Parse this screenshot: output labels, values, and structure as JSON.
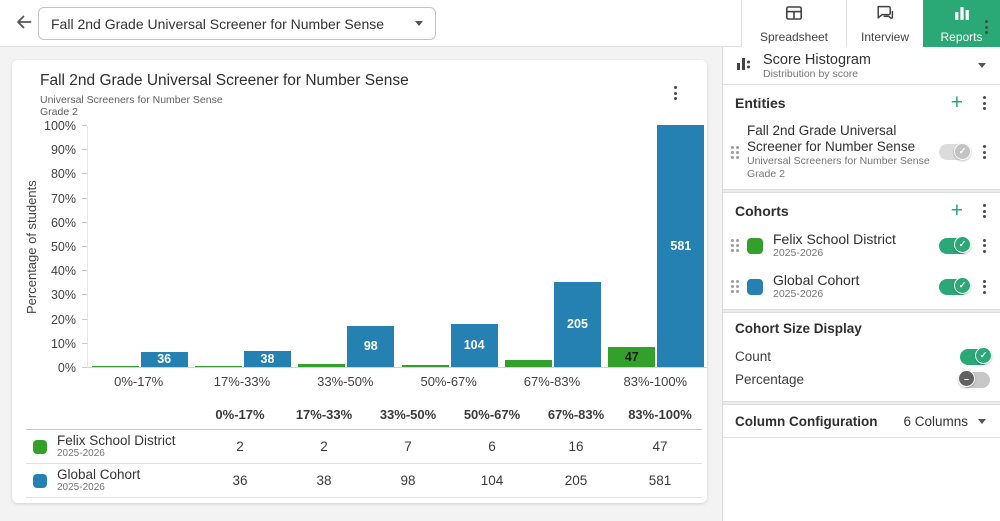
{
  "header": {
    "dropdown_value": "Fall 2nd Grade Universal Screener for Number Sense",
    "tabs": [
      {
        "label": "Spreadsheet",
        "active": false
      },
      {
        "label": "Interview",
        "active": false
      },
      {
        "label": "Reports",
        "active": true
      }
    ]
  },
  "chart_card": {
    "title": "Fall 2nd Grade Universal Screener for Number Sense",
    "subtitle_line1": "Universal Screeners for Number Sense",
    "subtitle_line2": "Grade 2"
  },
  "chart_data": {
    "type": "bar",
    "title": "Fall 2nd Grade Universal Screener for Number Sense",
    "ylabel": "Percentage of students",
    "ylim": [
      0,
      100
    ],
    "y_ticks": [
      "0%",
      "10%",
      "20%",
      "30%",
      "40%",
      "50%",
      "60%",
      "70%",
      "80%",
      "90%",
      "100%"
    ],
    "grid": false,
    "legend_position": "table-below-chart",
    "categories": [
      "0%-17%",
      "17%-33%",
      "33%-50%",
      "50%-67%",
      "67%-83%",
      "83%-100%"
    ],
    "series": [
      {
        "name": "Felix School District",
        "subtitle": "2025-2026",
        "color": "#33a02c",
        "label_color": "#1d1d1d",
        "values": [
          2,
          2,
          7,
          6,
          16,
          47
        ]
      },
      {
        "name": "Global Cohort",
        "subtitle": "2025-2026",
        "color": "#2581b2",
        "label_color": "#ffffff",
        "values": [
          36,
          38,
          98,
          104,
          205,
          581
        ]
      }
    ],
    "scale_max": 581,
    "bar_scale_note": "bar heights proportional to count; tallest bar (581) spans full 0-100% axis"
  },
  "table": {
    "columns": [
      "0%-17%",
      "17%-33%",
      "33%-50%",
      "50%-67%",
      "67%-83%",
      "83%-100%"
    ],
    "rows": [
      {
        "name": "Felix School District",
        "years": "2025-2026",
        "color": "#33a02c",
        "values": [
          2,
          2,
          7,
          6,
          16,
          47
        ]
      },
      {
        "name": "Global Cohort",
        "years": "2025-2026",
        "color": "#2581b2",
        "values": [
          36,
          38,
          98,
          104,
          205,
          581
        ]
      }
    ]
  },
  "panel": {
    "report_type": {
      "title": "Score Histogram",
      "subtitle": "Distribution by score"
    },
    "entities": {
      "title": "Entities",
      "items": [
        {
          "title": "Fall 2nd Grade Universal Screener for Number Sense",
          "subtitle_line1": "Universal Screeners for Number Sense",
          "subtitle_line2": "Grade 2",
          "toggle": "on-disabled"
        }
      ]
    },
    "cohorts": {
      "title": "Cohorts",
      "items": [
        {
          "name": "Felix School District",
          "years": "2025-2026",
          "color": "#33a02c",
          "toggle": "on"
        },
        {
          "name": "Global Cohort",
          "years": "2025-2026",
          "color": "#2581b2",
          "toggle": "on"
        }
      ]
    },
    "cohort_size_display": {
      "title": "Cohort Size Display",
      "options": [
        {
          "label": "Count",
          "toggle": "on"
        },
        {
          "label": "Percentage",
          "toggle": "off"
        }
      ]
    },
    "column_configuration": {
      "title": "Column Configuration",
      "value": "6 Columns"
    }
  },
  "colors": {
    "accent_green": "#2aa876",
    "bar_green": "#33a02c",
    "bar_blue": "#2581b2"
  }
}
